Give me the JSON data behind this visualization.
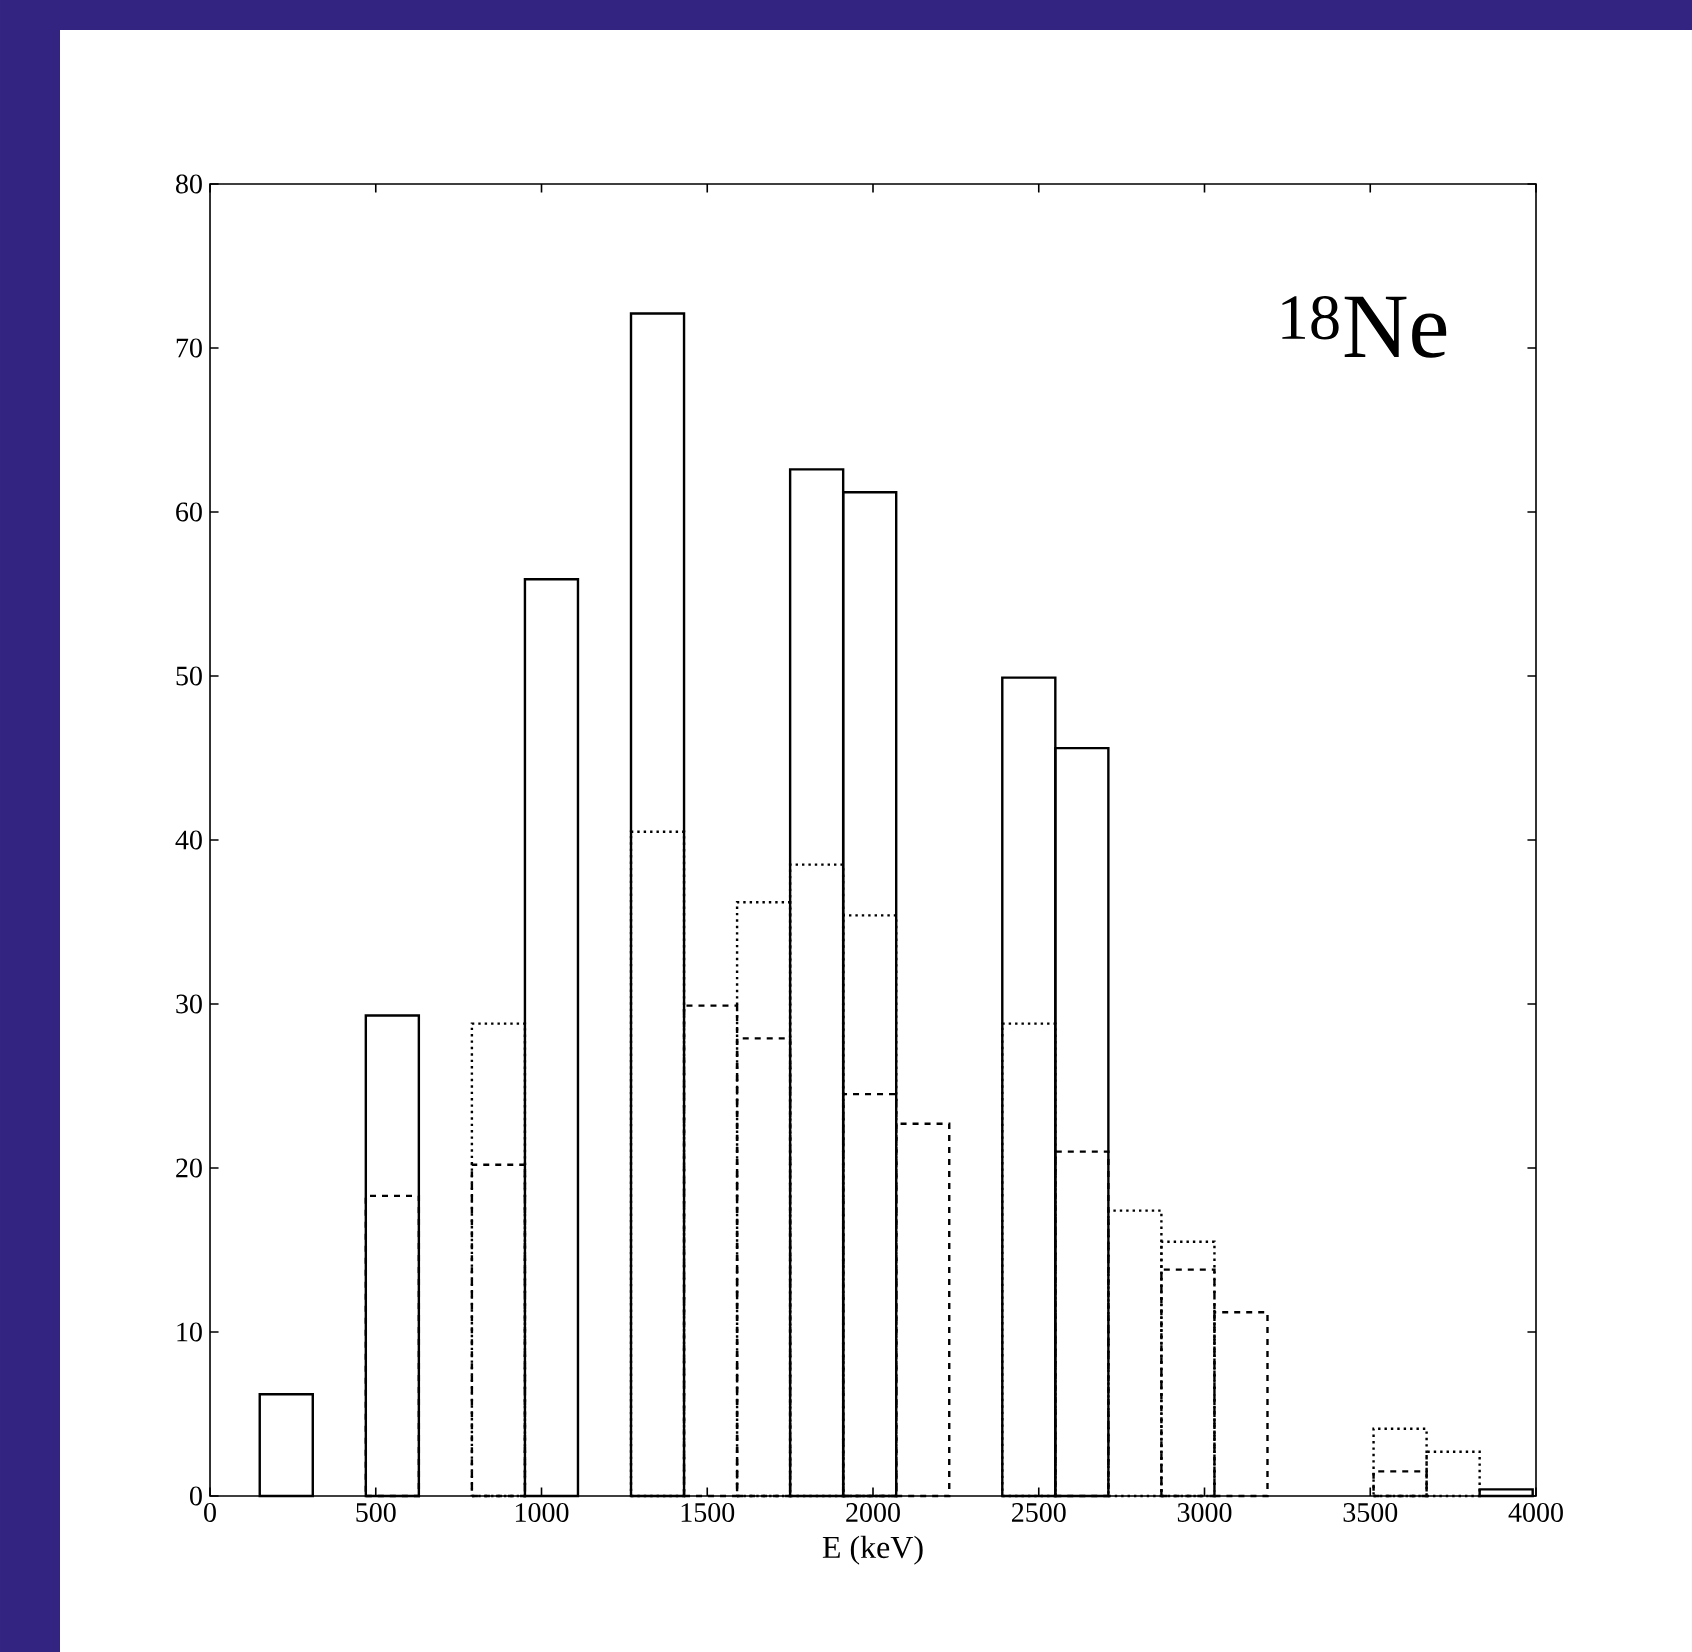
{
  "chart_data": {
    "type": "histogram",
    "xlabel": "E (keV)",
    "bins": [
      150,
      310,
      470,
      630,
      790,
      950,
      1110,
      1270,
      1430,
      1590,
      1750,
      1910,
      2070,
      2230,
      2390,
      2550,
      2710,
      2870,
      3030,
      3190,
      3350,
      3510,
      3670,
      3830,
      3990
    ],
    "series": [
      {
        "color": "#000000",
        "line_style": "solid",
        "values": [
          6.2,
          null,
          29.3,
          null,
          null,
          55.9,
          null,
          72.1,
          null,
          null,
          62.6,
          61.2,
          null,
          null,
          49.9,
          45.6,
          null,
          null,
          null,
          null,
          null,
          null,
          null,
          0.4
        ]
      },
      {
        "color": "#000000",
        "line_style": "dotted",
        "values": [
          null,
          null,
          null,
          null,
          28.8,
          null,
          null,
          40.5,
          null,
          36.2,
          38.5,
          35.4,
          null,
          null,
          28.8,
          null,
          17.4,
          15.5,
          null,
          null,
          null,
          4.1,
          2.7,
          null
        ]
      },
      {
        "color": "#000000",
        "line_style": "dashed",
        "values": [
          null,
          null,
          18.3,
          null,
          20.2,
          null,
          null,
          null,
          29.9,
          27.9,
          null,
          24.5,
          22.7,
          null,
          null,
          21.0,
          null,
          13.8,
          11.2,
          null,
          null,
          1.5,
          null,
          null
        ]
      }
    ],
    "xlim": [
      0,
      4000
    ],
    "xticks": [
      0,
      500,
      1000,
      1500,
      2000,
      2500,
      3000,
      3500,
      4000
    ],
    "ylim": [
      0,
      80
    ],
    "yticks": [
      0,
      10,
      20,
      30,
      40,
      50,
      60,
      70,
      80
    ],
    "annotations": [
      "$^{18}$Ne"
    ]
  }
}
